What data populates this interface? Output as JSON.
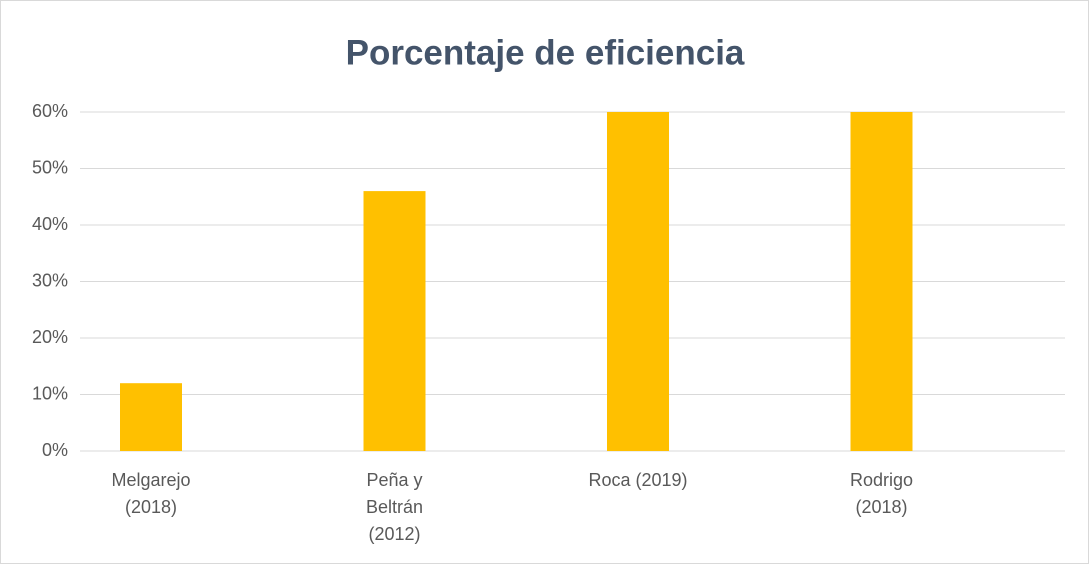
{
  "chart_data": {
    "type": "bar",
    "title": "Porcentaje de eficiencia",
    "categories": [
      "Melgarejo (2018)",
      "Peña y Beltrán (2012)",
      "Roca (2019)",
      "Rodrigo (2018)"
    ],
    "values": [
      12,
      46,
      60,
      60
    ],
    "color": "#ffc000",
    "ylim": [
      0,
      60
    ],
    "yticks": [
      {
        "value": 0,
        "label": "0%"
      },
      {
        "value": 10,
        "label": "10%"
      },
      {
        "value": 20,
        "label": "20%"
      },
      {
        "value": 30,
        "label": "30%"
      },
      {
        "value": 40,
        "label": "40%"
      },
      {
        "value": 50,
        "label": "50%"
      },
      {
        "value": 60,
        "label": "60%"
      }
    ],
    "grid": true
  }
}
